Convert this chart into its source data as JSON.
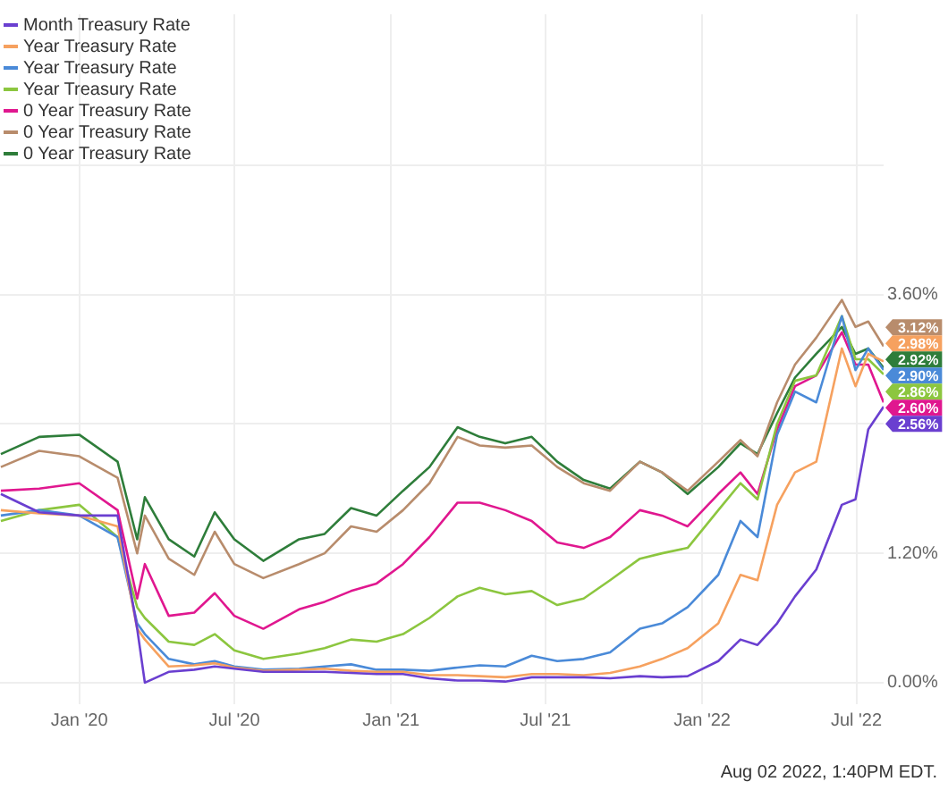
{
  "chart_data": {
    "type": "line",
    "x": [
      "2019-10-01",
      "2019-11-15",
      "2020-01-01",
      "2020-02-15",
      "2020-03-09",
      "2020-03-18",
      "2020-04-15",
      "2020-05-15",
      "2020-06-08",
      "2020-07-01",
      "2020-08-04",
      "2020-09-15",
      "2020-10-15",
      "2020-11-15",
      "2020-12-15",
      "2021-01-15",
      "2021-02-15",
      "2021-03-20",
      "2021-04-15",
      "2021-05-15",
      "2021-06-15",
      "2021-07-15",
      "2021-08-15",
      "2021-09-15",
      "2021-10-20",
      "2021-11-15",
      "2021-12-15",
      "2022-01-20",
      "2022-02-15",
      "2022-03-07",
      "2022-03-30",
      "2022-04-20",
      "2022-05-15",
      "2022-06-14",
      "2022-06-30",
      "2022-07-15",
      "2022-08-02"
    ],
    "xlim": [
      "2019-09-30",
      "2022-08-02"
    ],
    "xticks": [
      {
        "value": "2020-01-01",
        "label": "Jan '20"
      },
      {
        "value": "2020-07-01",
        "label": "Jul '20"
      },
      {
        "value": "2021-01-01",
        "label": "Jan '21"
      },
      {
        "value": "2021-07-01",
        "label": "Jul '21"
      },
      {
        "value": "2022-01-01",
        "label": "Jan '22"
      },
      {
        "value": "2022-07-01",
        "label": "Jul '22"
      }
    ],
    "ylim": [
      -0.2,
      6.2
    ],
    "yticks": [
      {
        "value": 0,
        "label": "0.00%"
      },
      {
        "value": 1.2,
        "label": "1.20%"
      },
      {
        "value": 2.4,
        "label": null
      },
      {
        "value": 3.6,
        "label": "3.60%"
      },
      {
        "value": 4.8,
        "label": null
      }
    ],
    "grid": true,
    "legend": "top left",
    "annotations": [
      "Aug 02 2022, 1:40PM EDT."
    ],
    "series": [
      {
        "name": "Month Treasury Rate",
        "color": "#6a3fd0",
        "values": [
          1.75,
          1.58,
          1.55,
          1.55,
          0.5,
          0.0,
          0.1,
          0.12,
          0.15,
          0.13,
          0.1,
          0.1,
          0.1,
          0.09,
          0.08,
          0.08,
          0.04,
          0.02,
          0.02,
          0.01,
          0.05,
          0.05,
          0.05,
          0.04,
          0.06,
          0.05,
          0.06,
          0.2,
          0.4,
          0.35,
          0.55,
          0.8,
          1.05,
          1.65,
          1.7,
          2.35,
          2.56
        ],
        "value_labels": [
          null,
          null,
          null,
          null,
          null,
          null,
          null,
          null,
          null,
          null,
          null,
          null,
          null,
          null,
          null,
          null,
          null,
          null,
          null,
          null,
          null,
          null,
          null,
          null,
          null,
          null,
          null,
          null,
          null,
          null,
          null,
          null,
          null,
          null,
          null,
          null,
          "2.56%"
        ]
      },
      {
        "name": "Year Treasury Rate",
        "color": "#f6a15f",
        "values": [
          1.6,
          1.57,
          1.55,
          1.45,
          0.5,
          0.4,
          0.15,
          0.16,
          0.18,
          0.14,
          0.11,
          0.12,
          0.13,
          0.11,
          0.1,
          0.1,
          0.07,
          0.07,
          0.06,
          0.05,
          0.08,
          0.08,
          0.07,
          0.09,
          0.15,
          0.22,
          0.32,
          0.55,
          1.0,
          0.95,
          1.65,
          1.95,
          2.05,
          3.1,
          2.75,
          3.05,
          2.98
        ],
        "value_labels": [
          null,
          null,
          null,
          null,
          null,
          null,
          null,
          null,
          null,
          null,
          null,
          null,
          null,
          null,
          null,
          null,
          null,
          null,
          null,
          null,
          null,
          null,
          null,
          null,
          null,
          null,
          null,
          null,
          null,
          null,
          null,
          null,
          null,
          null,
          null,
          null,
          "2.98%"
        ]
      },
      {
        "name": "Year Treasury Rate",
        "color": "#4a8ad8",
        "values": [
          1.55,
          1.6,
          1.55,
          1.35,
          0.55,
          0.45,
          0.22,
          0.17,
          0.2,
          0.15,
          0.12,
          0.13,
          0.15,
          0.17,
          0.12,
          0.12,
          0.11,
          0.14,
          0.16,
          0.15,
          0.25,
          0.2,
          0.22,
          0.28,
          0.5,
          0.55,
          0.7,
          1.0,
          1.5,
          1.35,
          2.3,
          2.7,
          2.6,
          3.4,
          2.9,
          3.1,
          2.9
        ],
        "value_labels": [
          null,
          null,
          null,
          null,
          null,
          null,
          null,
          null,
          null,
          null,
          null,
          null,
          null,
          null,
          null,
          null,
          null,
          null,
          null,
          null,
          null,
          null,
          null,
          null,
          null,
          null,
          null,
          null,
          null,
          null,
          null,
          null,
          null,
          null,
          null,
          null,
          "2.90%"
        ]
      },
      {
        "name": "Year Treasury Rate",
        "color": "#8cc63f",
        "values": [
          1.5,
          1.6,
          1.65,
          1.35,
          0.7,
          0.6,
          0.38,
          0.35,
          0.45,
          0.3,
          0.22,
          0.27,
          0.32,
          0.4,
          0.38,
          0.45,
          0.6,
          0.8,
          0.88,
          0.82,
          0.85,
          0.72,
          0.78,
          0.95,
          1.15,
          1.2,
          1.25,
          1.6,
          1.85,
          1.7,
          2.4,
          2.8,
          2.85,
          3.4,
          3.0,
          3.0,
          2.86
        ],
        "value_labels": [
          null,
          null,
          null,
          null,
          null,
          null,
          null,
          null,
          null,
          null,
          null,
          null,
          null,
          null,
          null,
          null,
          null,
          null,
          null,
          null,
          null,
          null,
          null,
          null,
          null,
          null,
          null,
          null,
          null,
          null,
          null,
          null,
          null,
          null,
          null,
          null,
          "2.86%"
        ]
      },
      {
        "name": "0 Year Treasury Rate",
        "color": "#e0178f",
        "values": [
          1.78,
          1.8,
          1.85,
          1.6,
          0.78,
          1.1,
          0.62,
          0.65,
          0.83,
          0.62,
          0.5,
          0.68,
          0.75,
          0.85,
          0.92,
          1.1,
          1.35,
          1.67,
          1.67,
          1.6,
          1.5,
          1.3,
          1.25,
          1.35,
          1.6,
          1.55,
          1.45,
          1.75,
          1.95,
          1.75,
          2.35,
          2.75,
          2.85,
          3.25,
          2.95,
          2.95,
          2.6
        ],
        "value_labels": [
          null,
          null,
          null,
          null,
          null,
          null,
          null,
          null,
          null,
          null,
          null,
          null,
          null,
          null,
          null,
          null,
          null,
          null,
          null,
          null,
          null,
          null,
          null,
          null,
          null,
          null,
          null,
          null,
          null,
          null,
          null,
          null,
          null,
          null,
          null,
          null,
          "2.60%"
        ]
      },
      {
        "name": "0 Year Treasury Rate",
        "color": "#b88c6c",
        "values": [
          2.0,
          2.15,
          2.1,
          1.9,
          1.2,
          1.55,
          1.15,
          1.0,
          1.4,
          1.1,
          0.97,
          1.1,
          1.2,
          1.45,
          1.4,
          1.6,
          1.85,
          2.28,
          2.2,
          2.18,
          2.2,
          2.0,
          1.85,
          1.78,
          2.05,
          1.95,
          1.78,
          2.05,
          2.25,
          2.1,
          2.6,
          2.95,
          3.2,
          3.55,
          3.3,
          3.35,
          3.12
        ],
        "value_labels": [
          null,
          null,
          null,
          null,
          null,
          null,
          null,
          null,
          null,
          null,
          null,
          null,
          null,
          null,
          null,
          null,
          null,
          null,
          null,
          null,
          null,
          null,
          null,
          null,
          null,
          null,
          null,
          null,
          null,
          null,
          null,
          null,
          null,
          null,
          null,
          null,
          "3.12%"
        ]
      },
      {
        "name": "0 Year Treasury Rate",
        "color": "#2e7d3a",
        "values": [
          2.12,
          2.28,
          2.3,
          2.05,
          1.33,
          1.72,
          1.33,
          1.17,
          1.58,
          1.33,
          1.13,
          1.33,
          1.38,
          1.62,
          1.55,
          1.78,
          2.0,
          2.37,
          2.28,
          2.22,
          2.28,
          2.05,
          1.88,
          1.8,
          2.05,
          1.95,
          1.75,
          2.0,
          2.22,
          2.12,
          2.5,
          2.83,
          3.05,
          3.3,
          3.05,
          3.1,
          2.92
        ],
        "value_labels": [
          null,
          null,
          null,
          null,
          null,
          null,
          null,
          null,
          null,
          null,
          null,
          null,
          null,
          null,
          null,
          null,
          null,
          null,
          null,
          null,
          null,
          null,
          null,
          null,
          null,
          null,
          null,
          null,
          null,
          null,
          null,
          null,
          null,
          null,
          null,
          null,
          "2.92%"
        ]
      }
    ]
  }
}
